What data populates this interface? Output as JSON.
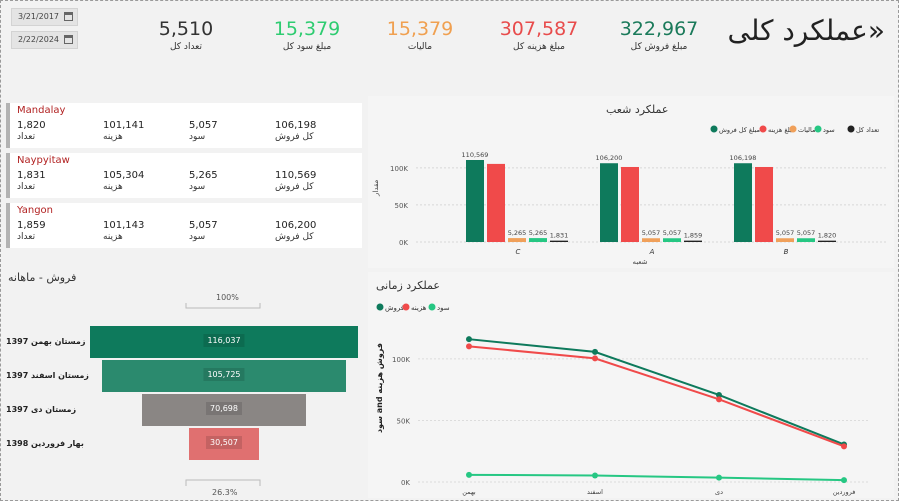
{
  "header": {
    "title": "«عملکرد کلی",
    "date_from": "3/21/2017",
    "date_to": "2/22/2024"
  },
  "kpis": [
    {
      "label": "مبلغ فروش کل",
      "value": "322,967",
      "color": "#1a7a5a"
    },
    {
      "label": "مبلغ هزینه کل",
      "value": "307,587",
      "color": "#e84c4c"
    },
    {
      "label": "مالیات",
      "value": "15,379",
      "color": "#f0a050"
    },
    {
      "label": "مبلغ سود کل",
      "value": "15,379",
      "color": "#2ecc71"
    },
    {
      "label": "تعداد کل",
      "value": "5,510",
      "color": "#333333"
    }
  ],
  "branches": [
    {
      "name": "Mandalay",
      "count": "1,820",
      "cost": "101,141",
      "profit": "5,057",
      "sales": "106,198"
    },
    {
      "name": "Naypyitaw",
      "count": "1,831",
      "cost": "105,304",
      "profit": "5,265",
      "sales": "110,569"
    },
    {
      "name": "Yangon",
      "count": "1,859",
      "cost": "101,143",
      "profit": "5,057",
      "sales": "106,200"
    }
  ],
  "branch_labels": {
    "count": "تعداد",
    "cost": "هزینه",
    "profit": "سود",
    "sales": "کل فروش"
  },
  "branch_chart": {
    "title": "عملکرد شعب",
    "xlabel": "شعبه",
    "ylabel": "مقدار",
    "legend": [
      "مبلغ کل فروش",
      "مبلغ هزینه",
      "مالیات",
      "سود",
      "تعداد کل"
    ],
    "colors": [
      "#0e7a5c",
      "#f04a4a",
      "#f0a05a",
      "#26c783",
      "#222222"
    ],
    "yticks": [
      "100K",
      "50K",
      "0K"
    ]
  },
  "time_chart": {
    "title": "عملکرد زمانی",
    "legend": [
      "فروش",
      "هزینه",
      "سود"
    ],
    "colors": [
      "#0e7a5c",
      "#f04a4a",
      "#26c783"
    ],
    "ylabel": "سود and فروش هزینه",
    "yticks": [
      "100K",
      "50K",
      "0K"
    ]
  },
  "funnel": {
    "title": "فروش - ماهانه",
    "top_pct": "100%",
    "bottom_pct": "26.3%"
  },
  "chart_data": [
    {
      "type": "bar",
      "categories": [
        "C",
        "A",
        "B"
      ],
      "series": [
        {
          "name": "مبلغ کل فروش",
          "values": [
            110569,
            106200,
            106198
          ]
        },
        {
          "name": "مبلغ هزینه",
          "values": [
            105304,
            101143,
            101141
          ]
        },
        {
          "name": "مالیات",
          "values": [
            5265,
            5057,
            5057
          ]
        },
        {
          "name": "سود",
          "values": [
            5265,
            5057,
            5057
          ]
        },
        {
          "name": "تعداد کل",
          "values": [
            1831,
            1859,
            1820
          ]
        }
      ],
      "data_labels": [
        [
          "110,569",
          "",
          "5,265",
          "5,265",
          "1,831"
        ],
        [
          "106,200",
          "",
          "5,057",
          "5,057",
          "1,859"
        ],
        [
          "106,198",
          "",
          "5,057",
          "5,057",
          "1,820"
        ]
      ],
      "ylim": [
        0,
        120000
      ]
    },
    {
      "type": "line",
      "x": [
        "بهمن",
        "اسفند",
        "دی",
        "فروردین"
      ],
      "series": [
        {
          "name": "فروش",
          "values": [
            116037,
            105725,
            70698,
            30507
          ]
        },
        {
          "name": "هزینه",
          "values": [
            110235,
            100439,
            67163,
            28982
          ]
        },
        {
          "name": "سود",
          "values": [
            5802,
            5286,
            3535,
            1525
          ]
        }
      ],
      "ylim": [
        0,
        130000
      ]
    },
    {
      "type": "bar",
      "categories": [
        "زمستان بهمن 1397",
        "زمستان اسفند 1397",
        "زمستان دی 1397",
        "بهار فروردین 1398"
      ],
      "values": [
        116037,
        105725,
        70698,
        30507
      ],
      "labels": [
        "116,037",
        "105,725",
        "70,698",
        "30,507"
      ],
      "colors": [
        "#0e7a5c",
        "#2b8a6e",
        "#8a8684",
        "#e07070"
      ]
    }
  ]
}
